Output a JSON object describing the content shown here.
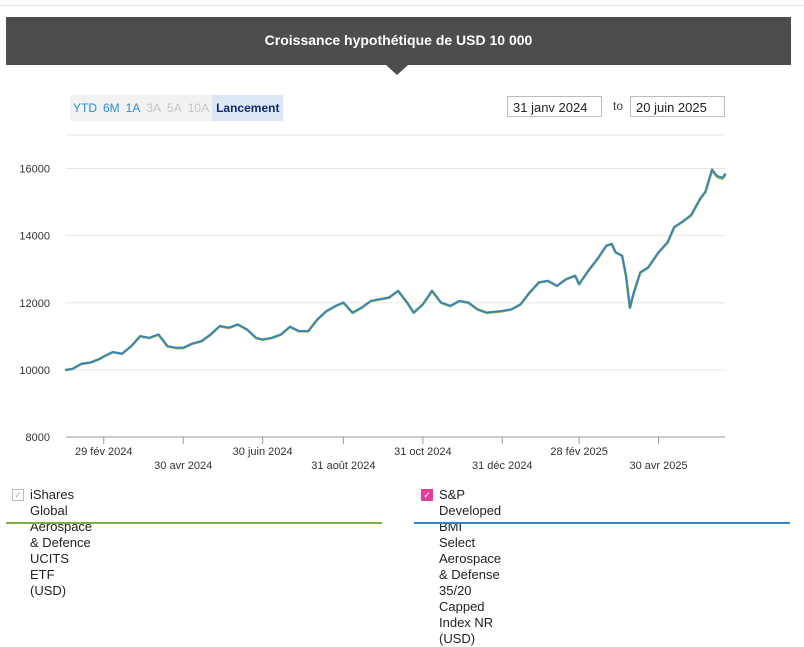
{
  "header": {
    "title": "Croissance hypothétique de USD 10 000"
  },
  "ranges": {
    "items": [
      {
        "label": "YTD",
        "state": "enabled"
      },
      {
        "label": "6M",
        "state": "enabled"
      },
      {
        "label": "1A",
        "state": "enabled"
      },
      {
        "label": "3A",
        "state": "disabled"
      },
      {
        "label": "5A",
        "state": "disabled"
      },
      {
        "label": "10A",
        "state": "disabled"
      },
      {
        "label": "Lancement",
        "state": "active"
      }
    ]
  },
  "dates": {
    "start": "31 janv 2024",
    "separator": "to",
    "end": "20 juin 2025"
  },
  "legend": {
    "fund": {
      "label_line1": "iShares Global Aerospace & Defence UCITS ETF",
      "label_line2": "(USD)",
      "checked": true,
      "color": "#7fb03f"
    },
    "index": {
      "label_line1": "S&P Developed BMI Select Aerospace & Defense",
      "label_line2": "35/20 Capped Index NR (USD)",
      "checked": true,
      "color": "#3b82c4"
    }
  },
  "chart_data": {
    "type": "line",
    "title": "Croissance hypothétique de USD 10 000",
    "xlim": [
      "2024-01-31",
      "2025-06-20"
    ],
    "ylim": [
      8000,
      17000
    ],
    "y_ticks": [
      8000,
      10000,
      12000,
      14000,
      16000
    ],
    "x_ticks": [
      {
        "date": "2024-02-29",
        "label": "29 fév 2024"
      },
      {
        "date": "2024-04-30",
        "label": "30 avr 2024"
      },
      {
        "date": "2024-06-30",
        "label": "30 juin 2024"
      },
      {
        "date": "2024-08-31",
        "label": "31 août 2024"
      },
      {
        "date": "2024-10-31",
        "label": "31 oct 2024"
      },
      {
        "date": "2024-12-31",
        "label": "31 déc 2024"
      },
      {
        "date": "2025-02-28",
        "label": "28 fév 2025"
      },
      {
        "date": "2025-04-30",
        "label": "30 avr 2025"
      }
    ],
    "grid": true,
    "legend_position": "bottom",
    "series": [
      {
        "name": "iShares Global Aerospace & Defence UCITS ETF (USD)",
        "color": "#7fb03f",
        "points": [
          [
            "2024-01-31",
            10000
          ],
          [
            "2024-02-05",
            10030
          ],
          [
            "2024-02-12",
            10180
          ],
          [
            "2024-02-19",
            10220
          ],
          [
            "2024-02-26",
            10330
          ],
          [
            "2024-02-29",
            10400
          ],
          [
            "2024-03-07",
            10530
          ],
          [
            "2024-03-14",
            10480
          ],
          [
            "2024-03-21",
            10700
          ],
          [
            "2024-03-28",
            11000
          ],
          [
            "2024-04-04",
            10950
          ],
          [
            "2024-04-11",
            11050
          ],
          [
            "2024-04-18",
            10700
          ],
          [
            "2024-04-25",
            10650
          ],
          [
            "2024-04-30",
            10650
          ],
          [
            "2024-05-07",
            10780
          ],
          [
            "2024-05-14",
            10850
          ],
          [
            "2024-05-21",
            11050
          ],
          [
            "2024-05-28",
            11300
          ],
          [
            "2024-06-04",
            11250
          ],
          [
            "2024-06-11",
            11350
          ],
          [
            "2024-06-18",
            11200
          ],
          [
            "2024-06-25",
            10950
          ],
          [
            "2024-06-30",
            10900
          ],
          [
            "2024-07-07",
            10950
          ],
          [
            "2024-07-14",
            11050
          ],
          [
            "2024-07-21",
            11280
          ],
          [
            "2024-07-28",
            11150
          ],
          [
            "2024-08-04",
            11150
          ],
          [
            "2024-08-11",
            11500
          ],
          [
            "2024-08-18",
            11750
          ],
          [
            "2024-08-25",
            11900
          ],
          [
            "2024-08-31",
            12000
          ],
          [
            "2024-09-07",
            11700
          ],
          [
            "2024-09-14",
            11850
          ],
          [
            "2024-09-21",
            12050
          ],
          [
            "2024-09-28",
            12100
          ],
          [
            "2024-10-05",
            12150
          ],
          [
            "2024-10-12",
            12350
          ],
          [
            "2024-10-19",
            12000
          ],
          [
            "2024-10-24",
            11700
          ],
          [
            "2024-10-31",
            11950
          ],
          [
            "2024-11-07",
            12350
          ],
          [
            "2024-11-14",
            12000
          ],
          [
            "2024-11-21",
            11900
          ],
          [
            "2024-11-28",
            12050
          ],
          [
            "2024-12-05",
            12000
          ],
          [
            "2024-12-12",
            11800
          ],
          [
            "2024-12-19",
            11700
          ],
          [
            "2024-12-31",
            11750
          ],
          [
            "2025-01-07",
            11800
          ],
          [
            "2025-01-14",
            11950
          ],
          [
            "2025-01-21",
            12300
          ],
          [
            "2025-01-28",
            12600
          ],
          [
            "2025-02-04",
            12650
          ],
          [
            "2025-02-11",
            12500
          ],
          [
            "2025-02-18",
            12700
          ],
          [
            "2025-02-25",
            12800
          ],
          [
            "2025-02-28",
            12550
          ],
          [
            "2025-03-07",
            12950
          ],
          [
            "2025-03-14",
            13300
          ],
          [
            "2025-03-21",
            13700
          ],
          [
            "2025-03-25",
            13750
          ],
          [
            "2025-03-28",
            13500
          ],
          [
            "2025-04-02",
            13400
          ],
          [
            "2025-04-05",
            12800
          ],
          [
            "2025-04-08",
            11850
          ],
          [
            "2025-04-11",
            12300
          ],
          [
            "2025-04-16",
            12900
          ],
          [
            "2025-04-22",
            13050
          ],
          [
            "2025-04-30",
            13500
          ],
          [
            "2025-05-07",
            13800
          ],
          [
            "2025-05-12",
            14250
          ],
          [
            "2025-05-18",
            14400
          ],
          [
            "2025-05-25",
            14600
          ],
          [
            "2025-06-01",
            15100
          ],
          [
            "2025-06-05",
            15300
          ],
          [
            "2025-06-10",
            15950
          ],
          [
            "2025-06-14",
            15750
          ],
          [
            "2025-06-18",
            15700
          ],
          [
            "2025-06-20",
            15800
          ]
        ]
      },
      {
        "name": "S&P Developed BMI Select Aerospace & Defense 35/20 Capped Index NR (USD)",
        "color": "#3b82c4",
        "points": [
          [
            "2024-01-31",
            10000
          ],
          [
            "2024-02-05",
            10030
          ],
          [
            "2024-02-12",
            10180
          ],
          [
            "2024-02-19",
            10220
          ],
          [
            "2024-02-26",
            10330
          ],
          [
            "2024-02-29",
            10400
          ],
          [
            "2024-03-07",
            10530
          ],
          [
            "2024-03-14",
            10480
          ],
          [
            "2024-03-21",
            10710
          ],
          [
            "2024-03-28",
            11010
          ],
          [
            "2024-04-04",
            10960
          ],
          [
            "2024-04-11",
            11060
          ],
          [
            "2024-04-18",
            10710
          ],
          [
            "2024-04-25",
            10660
          ],
          [
            "2024-04-30",
            10660
          ],
          [
            "2024-05-07",
            10790
          ],
          [
            "2024-05-14",
            10860
          ],
          [
            "2024-05-21",
            11060
          ],
          [
            "2024-05-28",
            11310
          ],
          [
            "2024-06-04",
            11260
          ],
          [
            "2024-06-11",
            11360
          ],
          [
            "2024-06-18",
            11210
          ],
          [
            "2024-06-25",
            10960
          ],
          [
            "2024-06-30",
            10910
          ],
          [
            "2024-07-07",
            10960
          ],
          [
            "2024-07-14",
            11060
          ],
          [
            "2024-07-21",
            11290
          ],
          [
            "2024-07-28",
            11160
          ],
          [
            "2024-08-04",
            11160
          ],
          [
            "2024-08-11",
            11510
          ],
          [
            "2024-08-18",
            11760
          ],
          [
            "2024-08-25",
            11910
          ],
          [
            "2024-08-31",
            12010
          ],
          [
            "2024-09-07",
            11710
          ],
          [
            "2024-09-14",
            11860
          ],
          [
            "2024-09-21",
            12060
          ],
          [
            "2024-09-28",
            12110
          ],
          [
            "2024-10-05",
            12160
          ],
          [
            "2024-10-12",
            12360
          ],
          [
            "2024-10-19",
            12010
          ],
          [
            "2024-10-24",
            11710
          ],
          [
            "2024-10-31",
            11960
          ],
          [
            "2024-11-07",
            12360
          ],
          [
            "2024-11-14",
            12010
          ],
          [
            "2024-11-21",
            11910
          ],
          [
            "2024-11-28",
            12060
          ],
          [
            "2024-12-05",
            12010
          ],
          [
            "2024-12-12",
            11810
          ],
          [
            "2024-12-19",
            11710
          ],
          [
            "2024-12-31",
            11760
          ],
          [
            "2025-01-07",
            11810
          ],
          [
            "2025-01-14",
            11960
          ],
          [
            "2025-01-21",
            12310
          ],
          [
            "2025-01-28",
            12610
          ],
          [
            "2025-02-04",
            12660
          ],
          [
            "2025-02-11",
            12510
          ],
          [
            "2025-02-18",
            12710
          ],
          [
            "2025-02-25",
            12810
          ],
          [
            "2025-02-28",
            12560
          ],
          [
            "2025-03-07",
            12960
          ],
          [
            "2025-03-14",
            13310
          ],
          [
            "2025-03-21",
            13710
          ],
          [
            "2025-03-25",
            13760
          ],
          [
            "2025-03-28",
            13510
          ],
          [
            "2025-04-02",
            13410
          ],
          [
            "2025-04-05",
            12810
          ],
          [
            "2025-04-08",
            11860
          ],
          [
            "2025-04-11",
            12310
          ],
          [
            "2025-04-16",
            12910
          ],
          [
            "2025-04-22",
            13060
          ],
          [
            "2025-04-30",
            13510
          ],
          [
            "2025-05-07",
            13810
          ],
          [
            "2025-05-12",
            14260
          ],
          [
            "2025-05-18",
            14410
          ],
          [
            "2025-05-25",
            14620
          ],
          [
            "2025-06-01",
            15120
          ],
          [
            "2025-06-05",
            15320
          ],
          [
            "2025-06-10",
            15980
          ],
          [
            "2025-06-14",
            15780
          ],
          [
            "2025-06-18",
            15730
          ],
          [
            "2025-06-20",
            15840
          ]
        ]
      }
    ]
  }
}
